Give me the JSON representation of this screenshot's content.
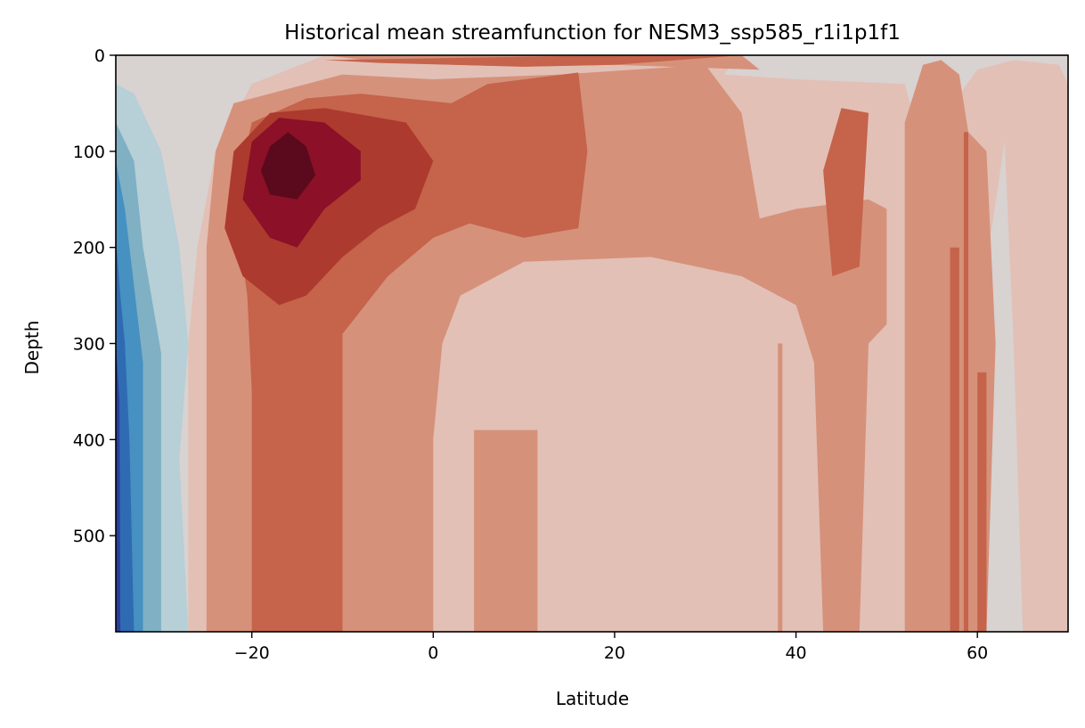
{
  "chart_data": {
    "type": "heatmap",
    "subtype": "filled-contour",
    "title": "Historical mean streamfunction for NESM3_ssp585_r1i1p1f1",
    "xlabel": "Latitude",
    "ylabel": "Depth",
    "xlim": [
      -35,
      70
    ],
    "ylim": [
      600,
      0
    ],
    "y_inverted": true,
    "grid": false,
    "legend": "none",
    "colormap": "diverging blue-white-red (cmocean balance-like)",
    "xticks": [
      -20,
      0,
      20,
      40,
      60
    ],
    "xtick_labels": [
      "−20",
      "0",
      "20",
      "40",
      "60"
    ],
    "yticks": [
      0,
      100,
      200,
      300,
      400,
      500
    ],
    "ytick_labels": [
      "0",
      "100",
      "200",
      "300",
      "400",
      "500"
    ],
    "levels": [
      {
        "level": -5,
        "color": "#2a3d9c"
      },
      {
        "level": -4,
        "color": "#2f6bb3"
      },
      {
        "level": -3,
        "color": "#4690c2"
      },
      {
        "level": -2,
        "color": "#7fb0c4"
      },
      {
        "level": -1,
        "color": "#b7cfd6"
      },
      {
        "level": 0,
        "color": "#d8d2d1"
      },
      {
        "level": 1,
        "color": "#e2c0b6"
      },
      {
        "level": 2,
        "color": "#d6917a"
      },
      {
        "level": 3,
        "color": "#c5634b"
      },
      {
        "level": 4,
        "color": "#ad3a2e"
      },
      {
        "level": 5,
        "color": "#8b1028"
      },
      {
        "level": 6,
        "color": "#5a0a1c"
      }
    ],
    "features": {
      "main_positive_cell": {
        "lat": -17,
        "depth": 110,
        "peak_level": 6
      },
      "southern_negative_cell": {
        "lat_range": [
          -35,
          -25
        ],
        "depth_range": [
          100,
          600
        ],
        "min_level": -5
      },
      "northern_banding": {
        "lat_range": [
          38,
          62
        ],
        "levels": [
          1,
          2,
          3
        ]
      }
    }
  }
}
